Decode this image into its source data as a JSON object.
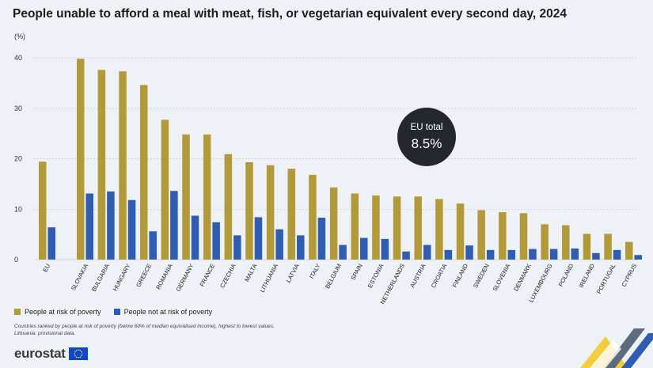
{
  "title": "People unable to afford a meal with meat, fish, or vegetarian equivalent every second day, 2024",
  "unit": "(%)",
  "callout": {
    "line1": "EU total",
    "line2": "8.5%"
  },
  "legend": {
    "poverty": "People at risk of poverty",
    "not_poverty": "People not at risk of poverty"
  },
  "notes": {
    "line1": "Countries ranked by people at risk of poverty (below 60% of median equivalised income), highest to lowest values.",
    "line2": "Lithuania: provisional data."
  },
  "logo": {
    "text": "eurostat",
    "flag_icon": "eu-flag-icon"
  },
  "colors": {
    "poverty": "#b39a38",
    "not_poverty": "#2e5db2",
    "callout_bg": "#23272e",
    "grid": "#c9cdd3"
  },
  "chart_data": {
    "type": "bar",
    "title": "People unable to afford a meal with meat, fish, or vegetarian equivalent every second day, 2024",
    "ylabel": "(%)",
    "ylim": [
      0,
      40
    ],
    "yticks": [
      0,
      10,
      20,
      30,
      40
    ],
    "grid": true,
    "legend_position": "bottom-left",
    "categories": [
      "EU",
      "SLOVAKIA",
      "BULGARIA",
      "HUNGARY",
      "GREECE",
      "ROMANIA",
      "GERMANY",
      "FRANCE",
      "CZECHIA",
      "MALTA",
      "LITHUANIA",
      "LATVIA",
      "ITALY",
      "BELGIUM",
      "SPAIN",
      "ESTONIA",
      "NETHERLANDS",
      "AUSTRIA",
      "CROATIA",
      "FINLAND",
      "SWEDEN",
      "SLOVENIA",
      "DENMARK",
      "LUXEMBOURG",
      "POLAND",
      "IRELAND",
      "PORTUGAL",
      "CYPRUS"
    ],
    "series": [
      {
        "name": "People at risk of poverty",
        "color": "#b39a38",
        "values": [
          19.4,
          39.8,
          37.6,
          37.3,
          34.6,
          27.7,
          24.8,
          24.8,
          20.9,
          19.3,
          18.7,
          18.0,
          16.8,
          14.3,
          13.1,
          12.7,
          12.5,
          12.5,
          12.0,
          11.1,
          9.8,
          9.4,
          9.2,
          7.0,
          6.8,
          5.1,
          5.1,
          3.5
        ]
      },
      {
        "name": "People not at risk of poverty",
        "color": "#2e5db2",
        "values": [
          6.4,
          13.1,
          13.5,
          11.8,
          5.6,
          13.6,
          8.7,
          7.4,
          4.8,
          8.4,
          6.0,
          4.8,
          8.3,
          2.9,
          4.3,
          4.1,
          1.6,
          2.9,
          1.9,
          2.8,
          1.9,
          1.9,
          2.1,
          2.1,
          2.2,
          1.3,
          1.9,
          0.9
        ]
      }
    ]
  }
}
